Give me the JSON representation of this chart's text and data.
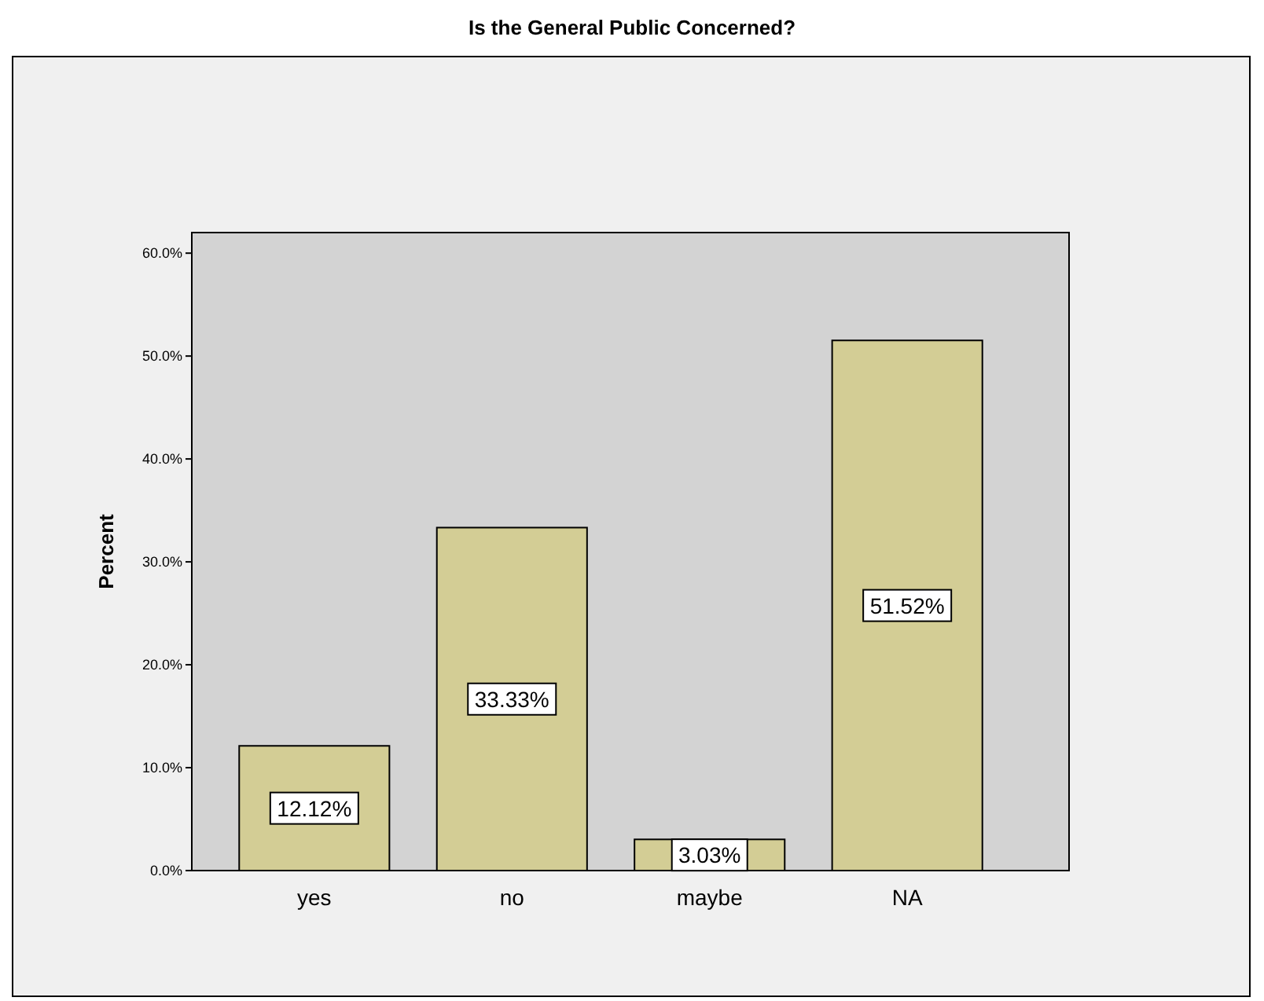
{
  "chart_data": {
    "type": "bar",
    "title": "Is the General Public Concerned?",
    "ylabel": "Percent",
    "categories": [
      "yes",
      "no",
      "maybe",
      "NA"
    ],
    "values": [
      12.12,
      33.33,
      3.03,
      51.52
    ],
    "value_labels": [
      "12.12%",
      "33.33%",
      "3.03%",
      "51.52%"
    ],
    "color": "#d3cd95",
    "ylim": [
      0,
      62
    ],
    "yticks": [
      {
        "value": 0,
        "label": "0.0%"
      },
      {
        "value": 10,
        "label": "10.0%"
      },
      {
        "value": 20,
        "label": "20.0%"
      },
      {
        "value": 30,
        "label": "30.0%"
      },
      {
        "value": 40,
        "label": "40.0%"
      },
      {
        "value": 50,
        "label": "50.0%"
      },
      {
        "value": 60,
        "label": "60.0%"
      }
    ],
    "grid": false
  }
}
